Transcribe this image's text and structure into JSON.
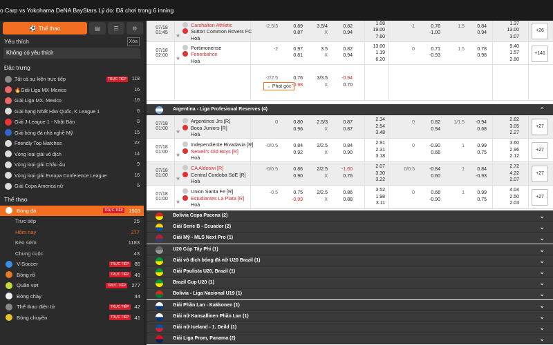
{
  "topbar": {
    "text": "o Carp vs Yokohama DeNA BayStars Lý do: Đã chơi trong 6 inning"
  },
  "sidebar": {
    "sport_button": "Thể thao",
    "favorites_title": "Yêu thích",
    "clear_label": "Xóa",
    "favorites_empty": "Không có yêu thích",
    "featured_title": "Đặc trưng",
    "featured": [
      {
        "label": "Tất cả sự kiện trực tiếp",
        "live": "TRỰC TIẾP",
        "count": "118",
        "color": "#888"
      },
      {
        "label": "🔥Giải Liga MX-Mexico",
        "live": "",
        "count": "16",
        "color": "#e66"
      },
      {
        "label": "Giải Liga MX, Mexico",
        "live": "",
        "count": "16",
        "color": "#e66"
      },
      {
        "label": "Giải hạng Nhất Hàn Quốc, K League 1",
        "live": "",
        "count": "6",
        "color": "#ddd"
      },
      {
        "label": "Giải J-League 1 - Nhật Bản",
        "live": "",
        "count": "8",
        "color": "#e33"
      },
      {
        "label": "Giải bóng đá nhà nghề Mỹ",
        "live": "",
        "count": "15",
        "color": "#36c"
      },
      {
        "label": "Friendly Top Matches",
        "live": "",
        "count": "22",
        "color": "#ddd"
      },
      {
        "label": "Vòng loại giải vô địch",
        "live": "",
        "count": "14",
        "color": "#ddd"
      },
      {
        "label": "Vòng loại giải Châu Âu",
        "live": "",
        "count": "9",
        "color": "#ddd"
      },
      {
        "label": "Vòng loại giải Europa Conference League",
        "live": "",
        "count": "16",
        "color": "#ddd"
      },
      {
        "label": "Giải Copa America nữ",
        "live": "",
        "count": "5",
        "color": "#ddd"
      }
    ],
    "sports_title": "Thể thao",
    "sports": [
      {
        "label": "Bóng đá",
        "live": "TRỰC TIẾP",
        "count": "1503",
        "active": true,
        "color": "#fff"
      },
      {
        "label": "Trực tiếp",
        "count": "25",
        "sub": true
      },
      {
        "label": "Hôm nay",
        "count": "277",
        "sub": true,
        "orange": true
      },
      {
        "label": "Kèo sớm",
        "count": "1183",
        "sub": true
      },
      {
        "label": "Chung cuộc",
        "count": "43",
        "sub": true
      },
      {
        "label": "V-Soccer",
        "live": "TRỰC TIẾP",
        "count": "85",
        "color": "#3a8ee6"
      },
      {
        "label": "Bóng rổ",
        "live": "TRỰC TIẾP",
        "count": "49",
        "color": "#e8782a"
      },
      {
        "label": "Quần vợt",
        "live": "TRỰC TIẾP",
        "count": "277",
        "color": "#c6d83a"
      },
      {
        "label": "Bóng chày",
        "live": "",
        "count": "44",
        "color": "#eee"
      },
      {
        "label": "Thể thao điện tử",
        "live": "TRỰC TIẾP",
        "count": "42",
        "color": "#888"
      },
      {
        "label": "Bóng chuyền",
        "live": "TRỰC TIẾP",
        "count": "41",
        "color": "#e8c22a"
      }
    ]
  },
  "matches": [
    {
      "time": "07/18\n01:45",
      "teams": [
        "Carshalton Athletic",
        "Sutton Common Rovers FC",
        "Hoà"
      ],
      "red": [
        true,
        false,
        false
      ],
      "cols": [
        [
          "-2.5/3",
          ""
        ],
        [
          "0.89",
          "0.87"
        ],
        [
          "3.5/4",
          "X"
        ],
        [
          "0.82",
          "0.94"
        ],
        [
          "1.08",
          "19.00",
          "7.60"
        ],
        [
          "-1",
          ""
        ],
        [
          "0.76",
          "-1.00"
        ],
        [
          "1.5",
          ""
        ],
        [
          "0.84",
          "0.94"
        ],
        [
          "1.37",
          "13.00",
          "3.07"
        ]
      ],
      "more": "+26"
    },
    {
      "time": "07/18\n02:00",
      "teams": [
        "Portimonense",
        "Fenerbahce",
        "Hoà"
      ],
      "red": [
        false,
        true,
        false
      ],
      "cols": [
        [
          "-2",
          ""
        ],
        [
          "0.97",
          "0.81"
        ],
        [
          "3.5",
          "X"
        ],
        [
          "0.82",
          "0.94"
        ],
        [
          "13.00",
          "1.19",
          "6.20"
        ],
        [
          "0",
          ""
        ],
        [
          "0.71",
          "-0.93"
        ],
        [
          "1.5",
          ""
        ],
        [
          "0.78",
          "0.98"
        ],
        [
          "9.40",
          "1.57",
          "2.80"
        ]
      ],
      "more": "+141"
    },
    {
      "time": "",
      "teams": [],
      "red": [],
      "cols": [
        [
          "-2/2.5",
          ""
        ],
        [
          "0.76",
          "-0.98"
        ],
        [
          "3/3.5",
          "X"
        ],
        [
          "-0.94",
          "0.70"
        ]
      ],
      "more": "",
      "extra": "Phạt góc"
    }
  ],
  "leagues_top": {
    "name": "Argentina - Liga Profesional Reserves (4)"
  },
  "matches2": [
    {
      "time": "07/18\n01:00",
      "teams": [
        "Argentinos Jrs [R]",
        "Boca Juniors [R]",
        "Hoà"
      ],
      "red": [
        false,
        false,
        false
      ],
      "cols": [
        [
          "0",
          ""
        ],
        [
          "0.80",
          "0.96"
        ],
        [
          "2.5/3",
          "X"
        ],
        [
          "0.87",
          "0.87"
        ],
        [
          "2.34",
          "2.54",
          "3.48"
        ],
        [
          "0",
          ""
        ],
        [
          "0.82",
          "0.94"
        ],
        [
          "1/1.5",
          ""
        ],
        [
          "-0.94",
          "0.68"
        ],
        [
          "2.82",
          "3.05",
          "2.27"
        ]
      ],
      "more": "+27"
    },
    {
      "time": "07/18\n01:00",
      "teams": [
        "Independiente Rivadavia [R]",
        "Newell's Old Boys [R]",
        "Hoà"
      ],
      "red": [
        false,
        true,
        false
      ],
      "cols": [
        [
          "-0/0.5",
          ""
        ],
        [
          "0.84",
          "0.92"
        ],
        [
          "2/2.5",
          "X"
        ],
        [
          "0.84",
          "0.90"
        ],
        [
          "2.91",
          "2.31",
          "3.18"
        ],
        [
          "0",
          ""
        ],
        [
          "-0.90",
          "0.66"
        ],
        [
          "1",
          ""
        ],
        [
          "0.99",
          "0.75"
        ],
        [
          "3.60",
          "2.96",
          "2.12"
        ]
      ],
      "more": "+27"
    },
    {
      "time": "07/18\n01:00",
      "teams": [
        "CA Aldosivi [R]",
        "Central Cordoba SdE [R]",
        "Hoà"
      ],
      "red": [
        true,
        false,
        false
      ],
      "cols": [
        [
          "-0/0.5",
          ""
        ],
        [
          "0.86",
          "0.90"
        ],
        [
          "2/2.5",
          "X"
        ],
        [
          "-1.00",
          "0.76"
        ],
        [
          "2.07",
          "3.30",
          "3.22"
        ],
        [
          "0/0.5",
          ""
        ],
        [
          "-0.84",
          "0.60"
        ],
        [
          "1",
          ""
        ],
        [
          "0.84",
          "-0.93"
        ],
        [
          "2.72",
          "4.22",
          "2.07"
        ]
      ],
      "more": "+27"
    },
    {
      "time": "07/18\n01:00",
      "teams": [
        "Union Santa Fe [R]",
        "Estudiantes La Plata [R]",
        "Hoà"
      ],
      "red": [
        false,
        true,
        false
      ],
      "cols": [
        [
          "-0.5",
          ""
        ],
        [
          "0.75",
          "-0.99"
        ],
        [
          "2/2.5",
          "X"
        ],
        [
          "0.86",
          "0.88"
        ],
        [
          "3.52",
          "1.98",
          "3.11"
        ],
        [
          "0",
          ""
        ],
        [
          "0.66",
          "-0.90"
        ],
        [
          "1",
          ""
        ],
        [
          "0.99",
          "0.75"
        ],
        [
          "4.04",
          "2.50",
          "2.03"
        ]
      ],
      "more": "+27"
    }
  ],
  "leagues": [
    {
      "name": "Bolivia Copa Pacena (2)",
      "c1": "#d52b1e",
      "c2": "#f9e300"
    },
    {
      "name": "Giải Serie B - Ecuador (2)",
      "c1": "#ffd100",
      "c2": "#034ea2"
    },
    {
      "name": "Giải Mỹ - MLS Next Pro (1)",
      "c1": "#b22234",
      "c2": "#3c3b6e"
    },
    {
      "name": "U20 Cúp Tây Phi (1)",
      "c1": "#666",
      "c2": "#999"
    },
    {
      "name": "Giải vô địch bóng đá nữ U20 Brazil (1)",
      "c1": "#009c3b",
      "c2": "#ffdf00"
    },
    {
      "name": "Giải Paulista U20, Brazil (1)",
      "c1": "#009c3b",
      "c2": "#ffdf00"
    },
    {
      "name": "Brazil Cup U20 (1)",
      "c1": "#009c3b",
      "c2": "#ffdf00"
    },
    {
      "name": "Bolivia - Liga Nacional U19 (1)",
      "c1": "#d52b1e",
      "c2": "#007934"
    },
    {
      "name": "Giải Phần Lan - Kakkonen (1)",
      "c1": "#fff",
      "c2": "#003580"
    },
    {
      "name": "Giải nữ Kansallinen Phần Lan (1)",
      "c1": "#fff",
      "c2": "#003580"
    },
    {
      "name": "Giải nữ Iceland - 1. Deild (1)",
      "c1": "#02529c",
      "c2": "#dc1e35"
    },
    {
      "name": "Giải Liga Prom, Panama (2)",
      "c1": "#da121a",
      "c2": "#072357"
    }
  ]
}
